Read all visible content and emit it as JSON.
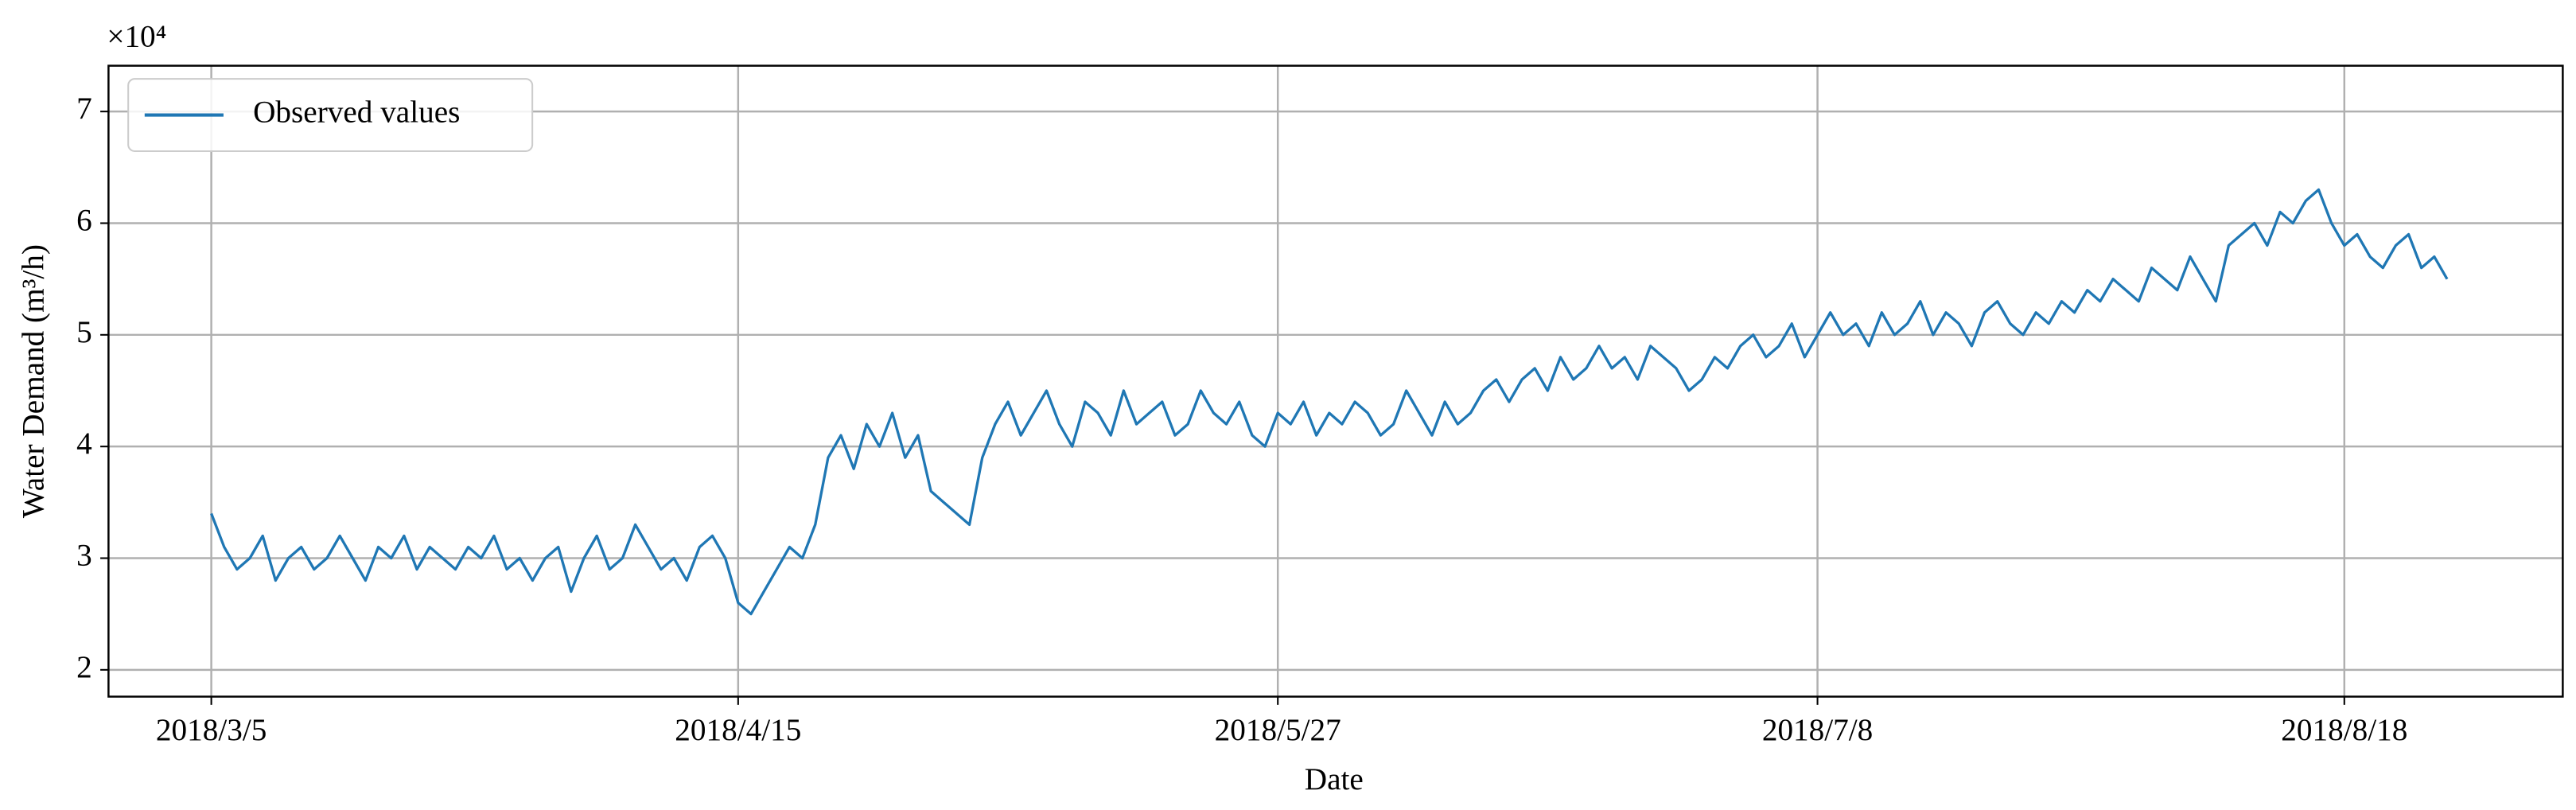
{
  "chart_data": {
    "type": "line",
    "x_label": "Date",
    "y_label": "Water Demand (m³/h)",
    "y_offset_label": "×10⁴",
    "x": [
      "2018/3/5",
      "2018/3/6",
      "2018/3/7",
      "2018/3/8",
      "2018/3/9",
      "2018/3/10",
      "2018/3/11",
      "2018/3/12",
      "2018/3/13",
      "2018/3/14",
      "2018/3/15",
      "2018/3/16",
      "2018/3/17",
      "2018/3/18",
      "2018/3/19",
      "2018/3/20",
      "2018/3/21",
      "2018/3/22",
      "2018/3/23",
      "2018/3/24",
      "2018/3/25",
      "2018/3/26",
      "2018/3/27",
      "2018/3/28",
      "2018/3/29",
      "2018/3/30",
      "2018/3/31",
      "2018/4/1",
      "2018/4/2",
      "2018/4/3",
      "2018/4/4",
      "2018/4/5",
      "2018/4/6",
      "2018/4/7",
      "2018/4/8",
      "2018/4/9",
      "2018/4/10",
      "2018/4/11",
      "2018/4/12",
      "2018/4/13",
      "2018/4/14",
      "2018/4/15",
      "2018/4/16",
      "2018/4/17",
      "2018/4/18",
      "2018/4/19",
      "2018/4/20",
      "2018/4/21",
      "2018/4/22",
      "2018/4/23",
      "2018/4/24",
      "2018/4/25",
      "2018/4/26",
      "2018/4/27",
      "2018/4/28",
      "2018/4/29",
      "2018/4/30",
      "2018/5/1",
      "2018/5/2",
      "2018/5/3",
      "2018/5/4",
      "2018/5/5",
      "2018/5/6",
      "2018/5/7",
      "2018/5/8",
      "2018/5/9",
      "2018/5/10",
      "2018/5/11",
      "2018/5/12",
      "2018/5/13",
      "2018/5/14",
      "2018/5/15",
      "2018/5/16",
      "2018/5/17",
      "2018/5/18",
      "2018/5/19",
      "2018/5/20",
      "2018/5/21",
      "2018/5/22",
      "2018/5/23",
      "2018/5/24",
      "2018/5/25",
      "2018/5/26",
      "2018/5/27",
      "2018/5/28",
      "2018/5/29",
      "2018/5/30",
      "2018/5/31",
      "2018/6/1",
      "2018/6/2",
      "2018/6/3",
      "2018/6/4",
      "2018/6/5",
      "2018/6/6",
      "2018/6/7",
      "2018/6/8",
      "2018/6/9",
      "2018/6/10",
      "2018/6/11",
      "2018/6/12",
      "2018/6/13",
      "2018/6/14",
      "2018/6/15",
      "2018/6/16",
      "2018/6/17",
      "2018/6/18",
      "2018/6/19",
      "2018/6/20",
      "2018/6/21",
      "2018/6/22",
      "2018/6/23",
      "2018/6/24",
      "2018/6/25",
      "2018/6/26",
      "2018/6/27",
      "2018/6/28",
      "2018/6/29",
      "2018/6/30",
      "2018/7/1",
      "2018/7/2",
      "2018/7/3",
      "2018/7/4",
      "2018/7/5",
      "2018/7/6",
      "2018/7/7",
      "2018/7/8",
      "2018/7/9",
      "2018/7/10",
      "2018/7/11",
      "2018/7/12",
      "2018/7/13",
      "2018/7/14",
      "2018/7/15",
      "2018/7/16",
      "2018/7/17",
      "2018/7/18",
      "2018/7/19",
      "2018/7/20",
      "2018/7/21",
      "2018/7/22",
      "2018/7/23",
      "2018/7/24",
      "2018/7/25",
      "2018/7/26",
      "2018/7/27",
      "2018/7/28",
      "2018/7/29",
      "2018/7/30",
      "2018/7/31",
      "2018/8/1",
      "2018/8/2",
      "2018/8/3",
      "2018/8/4",
      "2018/8/5",
      "2018/8/6",
      "2018/8/7",
      "2018/8/8",
      "2018/8/9",
      "2018/8/10",
      "2018/8/11",
      "2018/8/12",
      "2018/8/13",
      "2018/8/14",
      "2018/8/15",
      "2018/8/16",
      "2018/8/17",
      "2018/8/18",
      "2018/8/19",
      "2018/8/20",
      "2018/8/21",
      "2018/8/22",
      "2018/8/23",
      "2018/8/24",
      "2018/8/25",
      "2018/8/26"
    ],
    "series": [
      {
        "name": "Observed values",
        "color": "#1f77b4",
        "values": [
          3.4,
          3.1,
          2.9,
          3.0,
          3.2,
          2.8,
          3.0,
          3.1,
          2.9,
          3.0,
          3.2,
          3.0,
          2.8,
          3.1,
          3.0,
          3.2,
          2.9,
          3.1,
          3.0,
          2.9,
          3.1,
          3.0,
          3.2,
          2.9,
          3.0,
          2.8,
          3.0,
          3.1,
          2.7,
          3.0,
          3.2,
          2.9,
          3.0,
          3.3,
          3.1,
          2.9,
          3.0,
          2.8,
          3.1,
          3.2,
          3.0,
          2.6,
          2.5,
          2.7,
          2.9,
          3.1,
          3.0,
          3.3,
          3.9,
          4.1,
          3.8,
          4.2,
          4.0,
          4.3,
          3.9,
          4.1,
          3.6,
          3.5,
          3.4,
          3.3,
          3.9,
          4.2,
          4.4,
          4.1,
          4.3,
          4.5,
          4.2,
          4.0,
          4.4,
          4.3,
          4.1,
          4.5,
          4.2,
          4.3,
          4.4,
          4.1,
          4.2,
          4.5,
          4.3,
          4.2,
          4.4,
          4.1,
          4.0,
          4.3,
          4.2,
          4.4,
          4.1,
          4.3,
          4.2,
          4.4,
          4.3,
          4.1,
          4.2,
          4.5,
          4.3,
          4.1,
          4.4,
          4.2,
          4.3,
          4.5,
          4.6,
          4.4,
          4.6,
          4.7,
          4.5,
          4.8,
          4.6,
          4.7,
          4.9,
          4.7,
          4.8,
          4.6,
          4.9,
          4.8,
          4.7,
          4.5,
          4.6,
          4.8,
          4.7,
          4.9,
          5.0,
          4.8,
          4.9,
          5.1,
          4.8,
          5.0,
          5.2,
          5.0,
          5.1,
          4.9,
          5.2,
          5.0,
          5.1,
          5.3,
          5.0,
          5.2,
          5.1,
          4.9,
          5.2,
          5.3,
          5.1,
          5.0,
          5.2,
          5.1,
          5.3,
          5.2,
          5.4,
          5.3,
          5.5,
          5.4,
          5.3,
          5.6,
          5.5,
          5.4,
          5.7,
          5.5,
          5.3,
          5.8,
          5.9,
          6.0,
          5.8,
          6.1,
          6.0,
          6.2,
          6.3,
          6.0,
          5.8,
          5.9,
          5.7,
          5.6,
          5.8,
          5.9,
          5.6,
          5.7,
          5.5
        ]
      }
    ],
    "xlim": [
      "2018/2/25",
      "2018/9/4"
    ],
    "xticks": [
      "2018/3/5",
      "2018/4/15",
      "2018/5/27",
      "2018/7/8",
      "2018/8/18"
    ],
    "ylim": [
      1.76,
      7.41
    ],
    "yticks": [
      2,
      3,
      4,
      5,
      6,
      7
    ],
    "grid": true,
    "legend": "upper left"
  }
}
